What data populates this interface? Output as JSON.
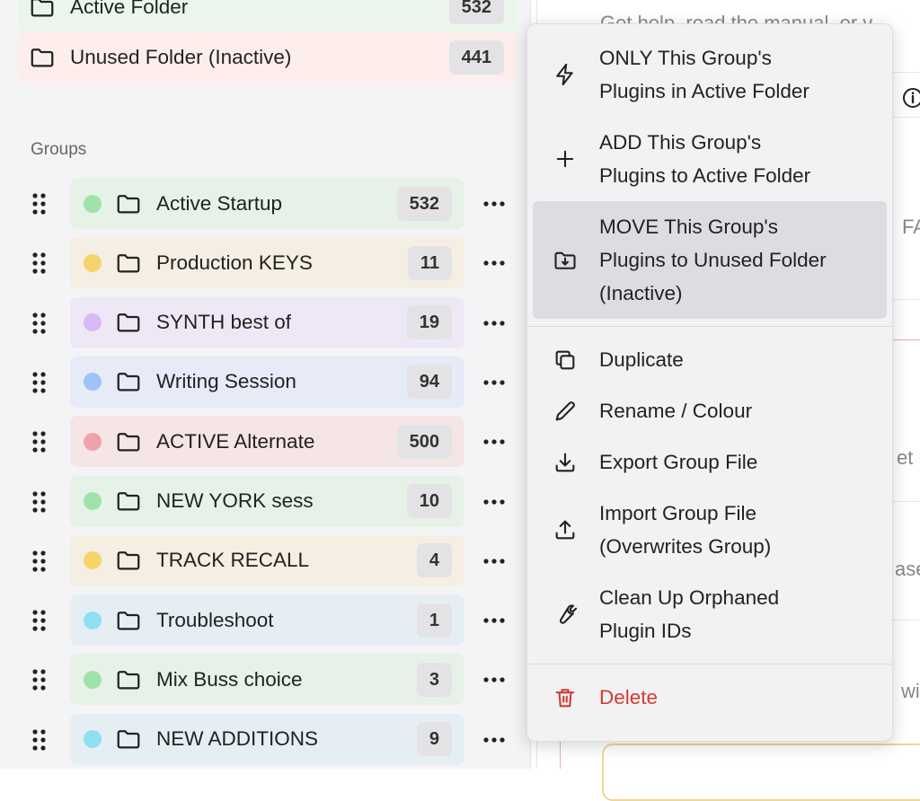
{
  "sidebar": {
    "folders": [
      {
        "name": "Active Folder",
        "count": 532,
        "color": "#eaf6ec"
      },
      {
        "name": "Unused Folder (Inactive)",
        "count": 441,
        "color": "#fdeeec"
      }
    ],
    "groups_heading": "Groups",
    "groups": [
      {
        "name": "Active Startup",
        "count": 532,
        "color": "#e6f2e8",
        "dot": "#9fe3ab"
      },
      {
        "name": "Production KEYS",
        "count": 11,
        "color": "#f5eee2",
        "dot": "#f5d46a"
      },
      {
        "name": "SYNTH best of",
        "count": 19,
        "color": "#eee8f6",
        "dot": "#d7b9f6"
      },
      {
        "name": "Writing Session",
        "count": 94,
        "color": "#e6ebf7",
        "dot": "#9fc3f7"
      },
      {
        "name": "ACTIVE Alternate",
        "count": 500,
        "color": "#f6e5e7",
        "dot": "#f0a2aa"
      },
      {
        "name": "NEW YORK sess",
        "count": 10,
        "color": "#e6f2e8",
        "dot": "#9fe3ab"
      },
      {
        "name": "TRACK RECALL",
        "count": 4,
        "color": "#f5eee2",
        "dot": "#f5d46a"
      },
      {
        "name": "Troubleshoot",
        "count": 1,
        "color": "#e5eff3",
        "dot": "#8fdff3"
      },
      {
        "name": "Mix Buss choice",
        "count": 3,
        "color": "#e6f2e8",
        "dot": "#9fe3ab"
      },
      {
        "name": "NEW ADDITIONS",
        "count": 9,
        "color": "#e5eff3",
        "dot": "#8fdff3"
      }
    ]
  },
  "context_menu": {
    "sections": [
      [
        {
          "lines": [
            "ONLY This Group's",
            "Plugins in Active Folder"
          ]
        },
        {
          "lines": [
            "ADD This Group's",
            "Plugins to Active Folder"
          ]
        },
        {
          "lines": [
            "MOVE This Group's",
            "Plugins to Unused Folder",
            "(Inactive)"
          ],
          "highlighted": true
        }
      ],
      [
        {
          "lines": [
            "Duplicate"
          ]
        },
        {
          "lines": [
            "Rename / Colour"
          ]
        },
        {
          "lines": [
            "Export Group File"
          ]
        },
        {
          "lines": [
            "Import Group File",
            "(Overwrites Group)"
          ]
        },
        {
          "lines": [
            "Clean Up Orphaned",
            "Plugin IDs"
          ]
        }
      ],
      [
        {
          "lines": [
            "Delete"
          ],
          "color": "#d23b2f"
        }
      ]
    ]
  },
  "background_texts": [
    "Get help, read the manual, or v",
    "FA",
    "et",
    "ase",
    "wi"
  ]
}
